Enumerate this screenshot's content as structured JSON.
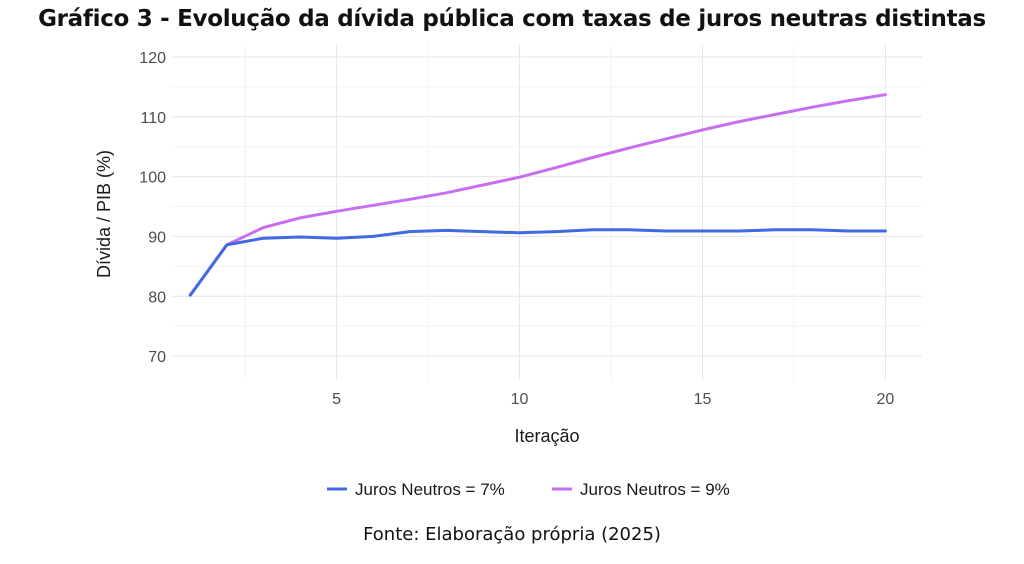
{
  "chart_data": {
    "type": "line",
    "title": "Gráfico 3 - Evolução da dívida pública com taxas de juros neutras distintas",
    "xlabel": "Iteração",
    "ylabel": "Dívida / PIB (%)",
    "xlim": [
      0.5,
      21
    ],
    "ylim": [
      66,
      122
    ],
    "xticks": [
      5,
      10,
      15,
      20
    ],
    "yticks": [
      70,
      80,
      90,
      100,
      110,
      120
    ],
    "grid": true,
    "legend_position": "bottom",
    "series": [
      {
        "name": "Juros Neutros = 7%",
        "color": "#4169e1",
        "x": [
          1,
          2,
          3,
          4,
          5,
          6,
          7,
          8,
          9,
          10,
          11,
          12,
          13,
          14,
          15,
          16,
          17,
          18,
          19,
          20
        ],
        "values": [
          80.2,
          88.6,
          89.7,
          89.9,
          89.7,
          90.0,
          90.8,
          91.0,
          90.8,
          90.6,
          90.8,
          91.1,
          91.1,
          90.9,
          90.9,
          90.9,
          91.1,
          91.1,
          90.9,
          90.9
        ]
      },
      {
        "name": "Juros Neutros = 9%",
        "color": "#c86ef0",
        "x": [
          1,
          2,
          3,
          4,
          5,
          6,
          7,
          8,
          9,
          10,
          11,
          12,
          13,
          14,
          15,
          16,
          17,
          18,
          19,
          20
        ],
        "values": [
          80.2,
          88.6,
          91.5,
          93.1,
          94.2,
          95.2,
          96.2,
          97.3,
          98.6,
          99.9,
          101.5,
          103.2,
          104.8,
          106.3,
          107.8,
          109.2,
          110.4,
          111.6,
          112.7,
          113.7
        ]
      }
    ]
  },
  "source": "Fonte: Elaboração própria (2025)"
}
